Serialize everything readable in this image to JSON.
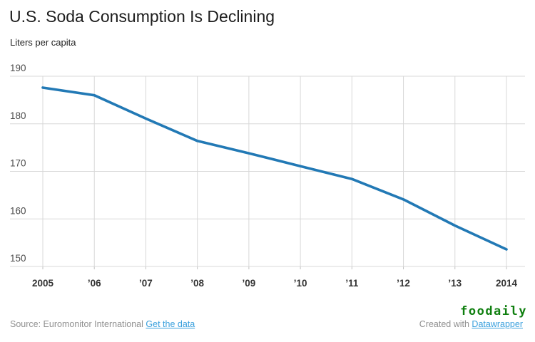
{
  "header": {
    "title": "U.S. Soda Consumption Is Declining",
    "subtitle": "Liters per capita"
  },
  "chart_data": {
    "type": "line",
    "title": "U.S. Soda Consumption Is Declining",
    "ylabel": "Liters per capita",
    "xlabel": "",
    "x": [
      2005,
      2006,
      2007,
      2008,
      2009,
      2010,
      2011,
      2012,
      2013,
      2014
    ],
    "x_tick_labels": [
      "2005",
      "’06",
      "’07",
      "’08",
      "’09",
      "’10",
      "’11",
      "’12",
      "’13",
      "2014"
    ],
    "y_ticks": [
      190,
      180,
      170,
      160,
      150
    ],
    "ylim": [
      150,
      190
    ],
    "grid": true,
    "legend": "none",
    "line_color": "#2279b5",
    "series": [
      {
        "name": "Liters per capita",
        "values": [
          187.6,
          186.0,
          181.1,
          176.4,
          173.8,
          171.1,
          168.4,
          164.1,
          158.6,
          153.6
        ]
      }
    ]
  },
  "footer": {
    "source_label": "Source: Euromonitor International",
    "get_data_link": "Get the data",
    "created_with": "Created with",
    "datawrapper_link": "Datawrapper",
    "watermark": "foodaily",
    "watermark_color": "#0f7f0f",
    "link_color": "#3aa0dd"
  }
}
